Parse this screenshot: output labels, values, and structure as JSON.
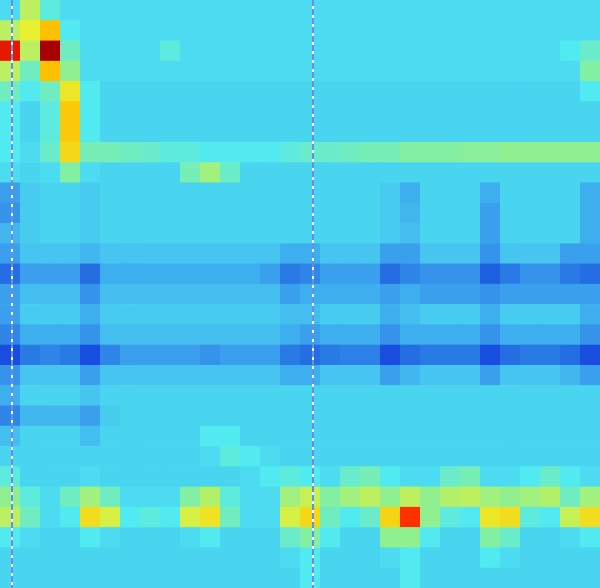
{
  "chart_data": {
    "type": "heatmap",
    "xlim": [
      0,
      30
    ],
    "ylim": [
      0,
      29
    ],
    "tick_labels": false,
    "grid": false,
    "color_range": [
      0,
      100
    ],
    "vlines": [
      0.6,
      15.65
    ],
    "line_style": "dashed",
    "z": [
      [
        38,
        55,
        42,
        38,
        38,
        38,
        38,
        38,
        38,
        38,
        38,
        38,
        38,
        38,
        38,
        38,
        38,
        38,
        38,
        38,
        38,
        38,
        38,
        38,
        38,
        38,
        38,
        38,
        38,
        38
      ],
      [
        55,
        60,
        70,
        40,
        38,
        38,
        38,
        38,
        38,
        38,
        38,
        38,
        38,
        38,
        38,
        38,
        38,
        38,
        38,
        38,
        38,
        38,
        38,
        38,
        38,
        38,
        38,
        38,
        38,
        38
      ],
      [
        85,
        55,
        95,
        45,
        38,
        38,
        38,
        38,
        42,
        38,
        38,
        38,
        38,
        38,
        38,
        38,
        38,
        38,
        38,
        38,
        38,
        38,
        38,
        38,
        38,
        38,
        38,
        38,
        40,
        44
      ],
      [
        55,
        45,
        70,
        50,
        38,
        38,
        38,
        38,
        38,
        38,
        38,
        38,
        38,
        38,
        38,
        38,
        38,
        38,
        38,
        38,
        38,
        38,
        38,
        38,
        38,
        38,
        38,
        38,
        38,
        48
      ],
      [
        45,
        40,
        45,
        62,
        40,
        37,
        37,
        37,
        37,
        37,
        37,
        37,
        37,
        37,
        37,
        37,
        37,
        37,
        37,
        37,
        37,
        37,
        37,
        37,
        37,
        37,
        37,
        37,
        37,
        40
      ],
      [
        40,
        37,
        42,
        68,
        40,
        37,
        37,
        37,
        37,
        37,
        37,
        37,
        37,
        37,
        37,
        37,
        37,
        37,
        37,
        37,
        37,
        37,
        37,
        37,
        37,
        37,
        37,
        37,
        37,
        37
      ],
      [
        40,
        37,
        42,
        68,
        40,
        37,
        37,
        37,
        37,
        37,
        37,
        37,
        37,
        37,
        37,
        37,
        37,
        37,
        37,
        37,
        37,
        37,
        37,
        37,
        37,
        37,
        37,
        37,
        37,
        37
      ],
      [
        40,
        38,
        44,
        65,
        46,
        46,
        45,
        44,
        42,
        42,
        40,
        40,
        40,
        40,
        42,
        44,
        44,
        45,
        46,
        46,
        48,
        48,
        48,
        49,
        49,
        50,
        50,
        50,
        50,
        50
      ],
      [
        38,
        37,
        38,
        48,
        38,
        37,
        37,
        37,
        37,
        46,
        52,
        44,
        37,
        37,
        37,
        37,
        37,
        37,
        37,
        37,
        37,
        37,
        37,
        37,
        37,
        37,
        37,
        37,
        37,
        37
      ],
      [
        30,
        36,
        37,
        37,
        36,
        37,
        37,
        37,
        37,
        37,
        37,
        37,
        37,
        37,
        37,
        37,
        37,
        37,
        37,
        36,
        32,
        37,
        37,
        37,
        32,
        37,
        37,
        37,
        37,
        32
      ],
      [
        28,
        36,
        37,
        37,
        36,
        37,
        37,
        37,
        37,
        37,
        37,
        37,
        37,
        37,
        37,
        37,
        37,
        37,
        37,
        36,
        33,
        37,
        37,
        37,
        30,
        37,
        37,
        37,
        37,
        32
      ],
      [
        33,
        36,
        37,
        37,
        36,
        37,
        37,
        37,
        37,
        37,
        37,
        37,
        37,
        37,
        37,
        37,
        37,
        37,
        37,
        36,
        34,
        37,
        37,
        37,
        30,
        37,
        37,
        37,
        37,
        32
      ],
      [
        30,
        35,
        35,
        35,
        33,
        35,
        35,
        35,
        35,
        35,
        35,
        35,
        35,
        35,
        32,
        32,
        35,
        35,
        35,
        30,
        30,
        35,
        35,
        35,
        28,
        35,
        35,
        35,
        30,
        30
      ],
      [
        22,
        30,
        30,
        30,
        22,
        32,
        32,
        32,
        32,
        32,
        32,
        32,
        32,
        30,
        24,
        26,
        30,
        30,
        30,
        22,
        26,
        28,
        28,
        28,
        20,
        24,
        28,
        28,
        24,
        22
      ],
      [
        30,
        34,
        34,
        34,
        28,
        34,
        34,
        34,
        34,
        34,
        34,
        34,
        34,
        34,
        30,
        32,
        32,
        32,
        32,
        30,
        32,
        30,
        30,
        30,
        28,
        30,
        30,
        30,
        30,
        30
      ],
      [
        30,
        36,
        36,
        36,
        32,
        36,
        36,
        36,
        36,
        36,
        36,
        36,
        36,
        36,
        34,
        34,
        36,
        36,
        36,
        32,
        34,
        36,
        36,
        36,
        32,
        36,
        36,
        36,
        36,
        32
      ],
      [
        26,
        32,
        32,
        32,
        28,
        34,
        34,
        34,
        34,
        34,
        34,
        34,
        34,
        34,
        32,
        30,
        32,
        32,
        32,
        28,
        32,
        32,
        32,
        32,
        28,
        32,
        32,
        32,
        32,
        28
      ],
      [
        18,
        24,
        26,
        24,
        18,
        26,
        30,
        30,
        30,
        30,
        28,
        30,
        30,
        30,
        24,
        22,
        24,
        25,
        25,
        18,
        22,
        24,
        24,
        24,
        18,
        22,
        24,
        24,
        22,
        18
      ],
      [
        28,
        35,
        35,
        35,
        30,
        35,
        35,
        35,
        35,
        35,
        35,
        35,
        35,
        35,
        32,
        32,
        35,
        35,
        35,
        30,
        33,
        35,
        35,
        35,
        30,
        35,
        35,
        35,
        33,
        30
      ],
      [
        32,
        37,
        37,
        37,
        35,
        37,
        37,
        37,
        37,
        37,
        37,
        37,
        37,
        37,
        37,
        37,
        37,
        37,
        37,
        37,
        37,
        37,
        37,
        37,
        37,
        37,
        37,
        37,
        37,
        37
      ],
      [
        26,
        33,
        33,
        33,
        30,
        36,
        37,
        37,
        37,
        37,
        37,
        37,
        37,
        37,
        37,
        37,
        37,
        37,
        37,
        37,
        37,
        37,
        37,
        37,
        37,
        37,
        37,
        37,
        37,
        37
      ],
      [
        34,
        37,
        37,
        37,
        34,
        37,
        37,
        37,
        37,
        37,
        40,
        40,
        37,
        37,
        37,
        37,
        37,
        37,
        37,
        37,
        37,
        37,
        37,
        37,
        37,
        37,
        37,
        37,
        37,
        37
      ],
      [
        37,
        37,
        37,
        37,
        37,
        37,
        37,
        37,
        37,
        37,
        38,
        42,
        40,
        38,
        37,
        37,
        37,
        37,
        37,
        37,
        37,
        37,
        37,
        37,
        37,
        37,
        37,
        37,
        37,
        37
      ],
      [
        42,
        37,
        37,
        37,
        38,
        37,
        37,
        37,
        37,
        37,
        37,
        37,
        38,
        40,
        42,
        40,
        38,
        44,
        46,
        40,
        38,
        38,
        44,
        46,
        38,
        38,
        40,
        44,
        40,
        38
      ],
      [
        50,
        42,
        38,
        45,
        52,
        45,
        38,
        38,
        38,
        48,
        54,
        42,
        38,
        38,
        52,
        56,
        48,
        52,
        55,
        50,
        55,
        50,
        54,
        55,
        52,
        50,
        52,
        54,
        45,
        52
      ],
      [
        55,
        45,
        38,
        40,
        64,
        58,
        40,
        42,
        40,
        58,
        63,
        45,
        38,
        38,
        58,
        65,
        45,
        40,
        44,
        66,
        80,
        50,
        42,
        40,
        62,
        64,
        42,
        40,
        56,
        64
      ],
      [
        40,
        38,
        37,
        37,
        40,
        38,
        37,
        37,
        37,
        38,
        40,
        37,
        37,
        37,
        44,
        48,
        40,
        37,
        37,
        50,
        50,
        40,
        37,
        37,
        48,
        44,
        37,
        37,
        38,
        40
      ],
      [
        37,
        37,
        37,
        37,
        37,
        37,
        37,
        37,
        37,
        37,
        37,
        37,
        37,
        37,
        38,
        40,
        37,
        37,
        37,
        38,
        40,
        37,
        37,
        37,
        40,
        38,
        37,
        37,
        37,
        37
      ],
      [
        37,
        37,
        37,
        37,
        37,
        37,
        37,
        37,
        37,
        37,
        37,
        37,
        37,
        37,
        37,
        40,
        37,
        37,
        37,
        37,
        40,
        37,
        37,
        37,
        37,
        37,
        37,
        37,
        37,
        37
      ]
    ]
  }
}
